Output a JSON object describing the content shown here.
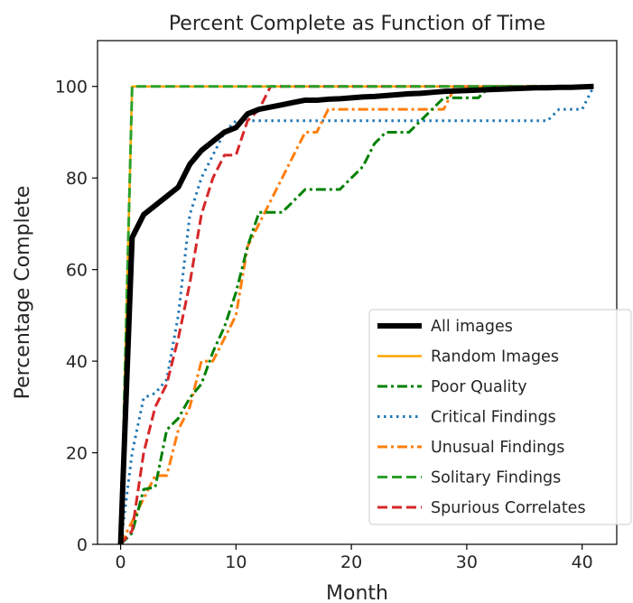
{
  "chart_data": {
    "type": "line",
    "title": "Percent Complete as Function of Time",
    "xlabel": "Month",
    "ylabel": "Percentage Complete",
    "xlim": [
      -2,
      43
    ],
    "ylim": [
      0,
      110
    ],
    "xticks": [
      0,
      10,
      20,
      30,
      40
    ],
    "yticks": [
      0,
      20,
      40,
      60,
      80,
      100
    ],
    "grid": false,
    "legend_position": "lower-right",
    "series": [
      {
        "name": "All images",
        "color": "#000000",
        "style": "solid-thick",
        "x": [
          0,
          1,
          2,
          3,
          4,
          5,
          6,
          7,
          8,
          9,
          10,
          11,
          12,
          13,
          14,
          15,
          16,
          17,
          18,
          19,
          20,
          21,
          22,
          23,
          24,
          25,
          26,
          27,
          28,
          29,
          30,
          31,
          32,
          33,
          34,
          35,
          36,
          37,
          38,
          39,
          40,
          41
        ],
        "y": [
          0,
          67,
          72,
          74,
          76,
          78,
          83,
          86,
          88,
          90,
          91,
          94,
          95,
          95.5,
          96,
          96.5,
          97,
          97,
          97.2,
          97.3,
          97.5,
          97.7,
          97.8,
          98,
          98.2,
          98.4,
          98.5,
          98.7,
          98.9,
          99,
          99.1,
          99.2,
          99.3,
          99.4,
          99.5,
          99.6,
          99.7,
          99.7,
          99.8,
          99.8,
          99.9,
          100
        ]
      },
      {
        "name": "Random Images",
        "color": "#ffa500",
        "style": "solid",
        "x": [
          0,
          1,
          41
        ],
        "y": [
          0,
          100,
          100
        ]
      },
      {
        "name": "Poor Quality",
        "color": "#008000",
        "style": "dashdot",
        "x": [
          0,
          1,
          2,
          3,
          4,
          5,
          6,
          7,
          8,
          9,
          10,
          11,
          12,
          13,
          14,
          15,
          16,
          17,
          18,
          19,
          20,
          21,
          22,
          23,
          24,
          25,
          26,
          27,
          28,
          29,
          30,
          31,
          32,
          33,
          41
        ],
        "y": [
          0,
          2.5,
          12,
          12.5,
          25,
          27.5,
          32,
          35,
          42,
          47.5,
          55,
          65,
          72.5,
          72.5,
          72.5,
          75,
          77.5,
          77.5,
          77.5,
          77.5,
          80,
          82.5,
          87.5,
          90,
          90,
          90,
          92.5,
          95,
          97.5,
          97.5,
          97.5,
          97.5,
          100,
          100,
          100
        ]
      },
      {
        "name": "Critical Findings",
        "color": "#1f77b4",
        "style": "dotted",
        "x": [
          0,
          1,
          2,
          3,
          4,
          5,
          6,
          7,
          8,
          9,
          10,
          11,
          12,
          13,
          14,
          15,
          16,
          17,
          18,
          19,
          20,
          21,
          22,
          23,
          24,
          25,
          26,
          27,
          28,
          29,
          30,
          31,
          32,
          33,
          34,
          35,
          36,
          37,
          38,
          39,
          40,
          41
        ],
        "y": [
          0,
          20,
          32,
          33,
          36,
          50,
          72,
          80,
          85,
          90,
          92.5,
          92.5,
          92.5,
          92.5,
          92.5,
          92.5,
          92.5,
          92.5,
          92.5,
          92.5,
          92.5,
          92.5,
          92.5,
          92.5,
          92.5,
          92.5,
          92.5,
          92.5,
          92.5,
          92.5,
          92.5,
          92.5,
          92.5,
          92.5,
          92.5,
          92.5,
          92.5,
          92.5,
          95,
          95,
          95,
          100
        ]
      },
      {
        "name": "Unusual Findings",
        "color": "#ff7f0e",
        "style": "dashdot",
        "x": [
          0,
          1,
          2,
          3,
          4,
          5,
          6,
          7,
          8,
          9,
          10,
          11,
          12,
          13,
          14,
          15,
          16,
          17,
          18,
          19,
          20,
          21,
          22,
          23,
          24,
          25,
          26,
          27,
          28,
          29,
          30,
          31,
          32,
          33,
          34,
          35,
          36,
          37,
          38,
          39,
          40,
          41
        ],
        "y": [
          0,
          5,
          10,
          15,
          15,
          25,
          30,
          40,
          40,
          45,
          50,
          65,
          70,
          75,
          80,
          85,
          90,
          90,
          95,
          95,
          95,
          95,
          95,
          95,
          95,
          95,
          95,
          95,
          95,
          100,
          100,
          100,
          100,
          100,
          100,
          100,
          100,
          100,
          100,
          100,
          100,
          100
        ]
      },
      {
        "name": "Solitary Findings",
        "color": "#2ca02c",
        "style": "dashed",
        "x": [
          0,
          1,
          41
        ],
        "y": [
          0,
          100,
          100
        ]
      },
      {
        "name": "Spurious Correlates",
        "color": "#d62728",
        "style": "dashed",
        "x": [
          0,
          1,
          2,
          3,
          4,
          5,
          6,
          7,
          8,
          9,
          10,
          11,
          12,
          13,
          41
        ],
        "y": [
          0,
          3,
          20,
          30,
          35,
          45,
          57,
          72,
          80,
          85,
          85,
          92.5,
          95,
          100,
          100
        ]
      }
    ]
  }
}
